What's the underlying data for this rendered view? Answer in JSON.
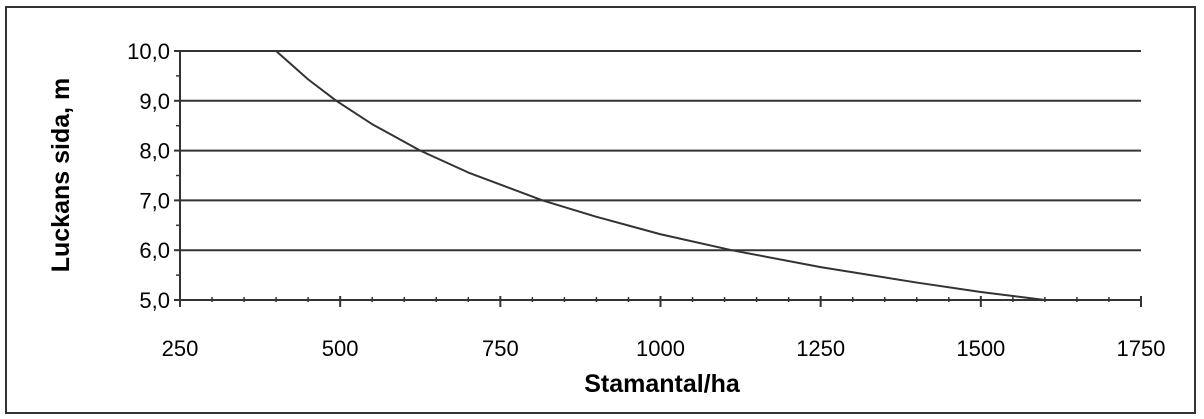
{
  "chart_data": {
    "type": "line",
    "title": "",
    "xlabel": "Stamantal/ha",
    "ylabel": "Luckans sida, m",
    "xlim": [
      250,
      1750
    ],
    "ylim": [
      5.0,
      10.0
    ],
    "x_ticks": [
      "250",
      "500",
      "750",
      "1000",
      "1250",
      "1500",
      "1750"
    ],
    "y_ticks": [
      "5,0",
      "6,0",
      "7,0",
      "8,0",
      "9,0",
      "10,0"
    ],
    "grid": "horizontal",
    "legend": "none",
    "series": [
      {
        "x": [
          400,
          450,
          494,
          550,
          625,
          700,
          816,
          900,
          1000,
          1111,
          1250,
          1400,
          1500,
          1600
        ],
        "y": [
          10.0,
          9.43,
          9.0,
          8.53,
          8.0,
          7.56,
          7.0,
          6.67,
          6.32,
          6.0,
          5.66,
          5.35,
          5.16,
          5.0
        ],
        "color": "#333333"
      }
    ]
  }
}
